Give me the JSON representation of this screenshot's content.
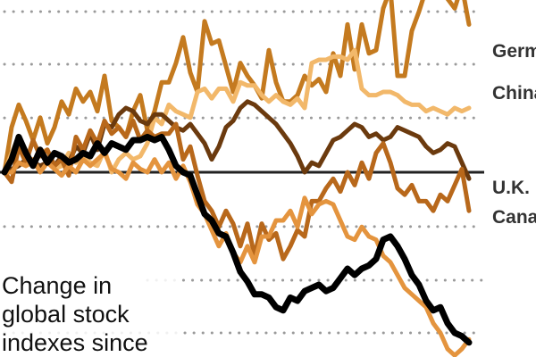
{
  "caption": {
    "line1": "Change in",
    "line2": "global stock",
    "line3": "indexes since"
  },
  "chart_data": {
    "type": "line",
    "title": "",
    "xlabel": "",
    "ylabel": "",
    "grid": true,
    "baseline": 0,
    "series": [
      {
        "name": "Germany",
        "color": "#c47a1f",
        "values": [
          0,
          14,
          21,
          16,
          10,
          17,
          9,
          14,
          22,
          18,
          26,
          22,
          25,
          19,
          30,
          16,
          14,
          11,
          19,
          24,
          13,
          19,
          28,
          28,
          34,
          42,
          31,
          25,
          47,
          40,
          41,
          33,
          25,
          34,
          30,
          27,
          23,
          38,
          28,
          22,
          22,
          24,
          30,
          27,
          29,
          25,
          37,
          30,
          46,
          32,
          46,
          37,
          38,
          51,
          57,
          30,
          30,
          44,
          50,
          57,
          60,
          57,
          54,
          51,
          58,
          46
        ]
      },
      {
        "name": "China",
        "color": "#f2b86a",
        "values": [
          0,
          6,
          11,
          2,
          3,
          6,
          7,
          1,
          2,
          6,
          3,
          5,
          3,
          2,
          7,
          0,
          4,
          6,
          4,
          5,
          9,
          17,
          15,
          21,
          19,
          18,
          17,
          25,
          26,
          23,
          26,
          26,
          22,
          28,
          27,
          27,
          24,
          22,
          24,
          22,
          21,
          23,
          20,
          34,
          35,
          35,
          36,
          36,
          35,
          38,
          26,
          24,
          24,
          25,
          25,
          24,
          22,
          21,
          21,
          19,
          20,
          19,
          18,
          20,
          19,
          20
        ]
      },
      {
        "name": "U.K.",
        "color": "#6b3a0e",
        "values": [
          0,
          1,
          2,
          4,
          3,
          2,
          3,
          2,
          5,
          3,
          8,
          6,
          12,
          7,
          15,
          14,
          18,
          20,
          19,
          16,
          15,
          18,
          18,
          16,
          14,
          13,
          15,
          12,
          9,
          4,
          8,
          14,
          16,
          20,
          22,
          21,
          19,
          17,
          15,
          12,
          9,
          5,
          0,
          3,
          2,
          6,
          10,
          11,
          13,
          15,
          14,
          11,
          12,
          10,
          11,
          14,
          13,
          12,
          11,
          8,
          6,
          7,
          9,
          8,
          3,
          -2
        ]
      },
      {
        "name": "Canada",
        "color": "#b8681b",
        "values": [
          0,
          -3,
          8,
          3,
          10,
          5,
          7,
          2,
          4,
          -1,
          11,
          7,
          13,
          9,
          16,
          12,
          14,
          11,
          16,
          10,
          13,
          11,
          12,
          12,
          15,
          4,
          8,
          -1,
          -9,
          -12,
          -17,
          -12,
          -16,
          -23,
          -16,
          -26,
          -16,
          -21,
          -19,
          -27,
          -23,
          -18,
          -20,
          -9,
          -9,
          -5,
          -2,
          -6,
          0,
          -4,
          3,
          -2,
          6,
          9,
          3,
          -5,
          -7,
          -4,
          -9,
          -9,
          -12,
          -7,
          -9,
          -4,
          1,
          -12
        ]
      },
      {
        "name": "",
        "color": "#e4943e",
        "values": [
          0,
          0,
          3,
          2,
          4,
          0,
          3,
          1,
          -1,
          2,
          0,
          4,
          2,
          4,
          6,
          1,
          0,
          -2,
          3,
          1,
          0,
          4,
          0,
          3,
          -2,
          2,
          -3,
          -10,
          -13,
          -18,
          -23,
          -19,
          -25,
          -28,
          -23,
          -28,
          -20,
          -20,
          -15,
          -15,
          -12,
          -17,
          -8,
          -13,
          -10,
          -9,
          -10,
          -15,
          -20,
          -21,
          -17,
          -20,
          -21,
          -26,
          -28,
          -32,
          -36,
          -38,
          -40,
          -42,
          -47,
          -50,
          -55,
          -57,
          -55,
          -52
        ]
      },
      {
        "name": "",
        "color": "#000000",
        "values": [
          0,
          4,
          11,
          6,
          2,
          7,
          3,
          6,
          5,
          3,
          4,
          6,
          5,
          9,
          6,
          9,
          8,
          7,
          10,
          10,
          11,
          10,
          11,
          7,
          2,
          0,
          -1,
          -7,
          -13,
          -15,
          -19,
          -20,
          -25,
          -31,
          -34,
          -38,
          -38,
          -39,
          -42,
          -43,
          -39,
          -40,
          -37,
          -36,
          -35,
          -37,
          -36,
          -33,
          -30,
          -32,
          -30,
          -29,
          -27,
          -21,
          -20,
          -23,
          -27,
          -32,
          -35,
          -40,
          -43,
          -42,
          -47,
          -50,
          -51,
          -53
        ]
      }
    ]
  }
}
